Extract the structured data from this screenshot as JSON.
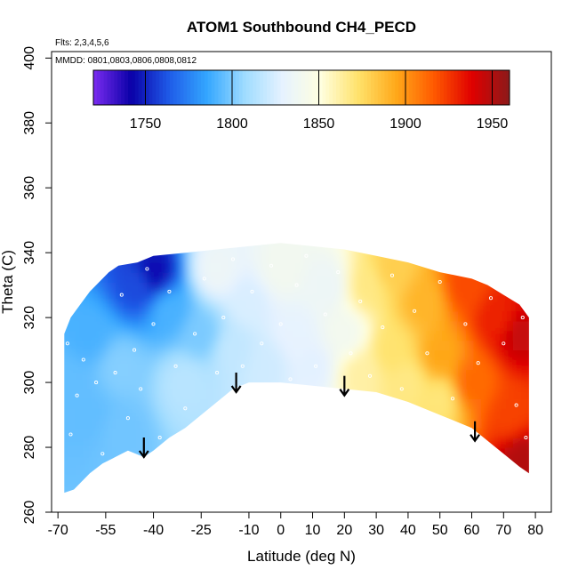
{
  "chart_data": {
    "type": "heatmap",
    "title": "ATOM1 Southbound CH4_PECD",
    "flights_label": "Flts: 2,3,4,5,6",
    "dates_label": "MMDD: 0801,0803,0806,0808,0812",
    "xlabel": "Latitude (deg N)",
    "ylabel": "Theta (C)",
    "xlim": [
      -72,
      85
    ],
    "ylim": [
      260,
      402
    ],
    "x_ticks": [
      -70,
      -55,
      -40,
      -25,
      -10,
      0,
      10,
      20,
      30,
      40,
      50,
      60,
      70,
      80
    ],
    "x_tick_labels": [
      "-70",
      "-55",
      "-40",
      "-25",
      "-10",
      "0",
      "10",
      "20",
      "30",
      "40",
      "50",
      "60",
      "70",
      "80"
    ],
    "y_ticks": [
      260,
      280,
      300,
      320,
      340,
      360,
      380,
      400
    ],
    "y_tick_labels": [
      "260",
      "280",
      "300",
      "320",
      "340",
      "360",
      "380",
      "400"
    ],
    "colorbar": {
      "min": 1720,
      "max": 1960,
      "ticks": [
        1750,
        1800,
        1850,
        1900,
        1950
      ],
      "tick_labels": [
        "1750",
        "1800",
        "1850",
        "1900",
        "1950"
      ],
      "colors": [
        "#7b2cf0",
        "#0a00a8",
        "#1f5be8",
        "#33a6ff",
        "#9fdcff",
        "#e6f2ff",
        "#ffffe0",
        "#ffe26b",
        "#ffa91a",
        "#ff5a00",
        "#e00000",
        "#8b1a1a"
      ]
    },
    "boundary_top": [
      [
        -68,
        315
      ],
      [
        -66,
        320
      ],
      [
        -63,
        324
      ],
      [
        -60,
        328
      ],
      [
        -57,
        331
      ],
      [
        -54,
        334
      ],
      [
        -51,
        336
      ],
      [
        -45,
        337
      ],
      [
        -40,
        339
      ],
      [
        -30,
        340
      ],
      [
        -20,
        341
      ],
      [
        -10,
        342
      ],
      [
        0,
        343
      ],
      [
        10,
        342
      ],
      [
        20,
        341
      ],
      [
        30,
        339
      ],
      [
        40,
        337
      ],
      [
        50,
        334
      ],
      [
        60,
        332
      ],
      [
        65,
        330
      ],
      [
        70,
        327
      ],
      [
        75,
        324
      ],
      [
        78,
        320
      ]
    ],
    "boundary_bottom": [
      [
        78,
        272
      ],
      [
        75,
        274
      ],
      [
        70,
        278
      ],
      [
        65,
        282
      ],
      [
        60,
        286
      ],
      [
        50,
        290
      ],
      [
        40,
        294
      ],
      [
        30,
        297
      ],
      [
        20,
        298
      ],
      [
        10,
        299
      ],
      [
        0,
        300
      ],
      [
        -10,
        300
      ],
      [
        -15,
        298
      ],
      [
        -20,
        294
      ],
      [
        -25,
        290
      ],
      [
        -30,
        286
      ],
      [
        -35,
        283
      ],
      [
        -40,
        279
      ],
      [
        -43,
        277
      ],
      [
        -48,
        279
      ],
      [
        -52,
        277
      ],
      [
        -56,
        275
      ],
      [
        -60,
        272
      ],
      [
        -65,
        267
      ],
      [
        -68,
        266
      ]
    ],
    "field": [
      {
        "lat": -68,
        "theta": 300,
        "ch4": 1795
      },
      {
        "lat": -60,
        "theta": 290,
        "ch4": 1795
      },
      {
        "lat": -60,
        "theta": 315,
        "ch4": 1790
      },
      {
        "lat": -50,
        "theta": 285,
        "ch4": 1798
      },
      {
        "lat": -50,
        "theta": 305,
        "ch4": 1802
      },
      {
        "lat": -45,
        "theta": 330,
        "ch4": 1760
      },
      {
        "lat": -40,
        "theta": 334,
        "ch4": 1745
      },
      {
        "lat": -35,
        "theta": 322,
        "ch4": 1790
      },
      {
        "lat": -30,
        "theta": 300,
        "ch4": 1815
      },
      {
        "lat": -25,
        "theta": 315,
        "ch4": 1800
      },
      {
        "lat": -20,
        "theta": 335,
        "ch4": 1835
      },
      {
        "lat": -15,
        "theta": 310,
        "ch4": 1818
      },
      {
        "lat": -10,
        "theta": 325,
        "ch4": 1825
      },
      {
        "lat": -5,
        "theta": 305,
        "ch4": 1822
      },
      {
        "lat": 0,
        "theta": 335,
        "ch4": 1840
      },
      {
        "lat": 5,
        "theta": 315,
        "ch4": 1830
      },
      {
        "lat": 10,
        "theta": 305,
        "ch4": 1828
      },
      {
        "lat": 15,
        "theta": 330,
        "ch4": 1835
      },
      {
        "lat": 20,
        "theta": 315,
        "ch4": 1840
      },
      {
        "lat": 25,
        "theta": 303,
        "ch4": 1862
      },
      {
        "lat": 27,
        "theta": 330,
        "ch4": 1868
      },
      {
        "lat": 35,
        "theta": 335,
        "ch4": 1880
      },
      {
        "lat": 35,
        "theta": 310,
        "ch4": 1872
      },
      {
        "lat": 40,
        "theta": 300,
        "ch4": 1868
      },
      {
        "lat": 45,
        "theta": 325,
        "ch4": 1890
      },
      {
        "lat": 50,
        "theta": 308,
        "ch4": 1895
      },
      {
        "lat": 50,
        "theta": 295,
        "ch4": 1870
      },
      {
        "lat": 58,
        "theta": 330,
        "ch4": 1920
      },
      {
        "lat": 60,
        "theta": 300,
        "ch4": 1912
      },
      {
        "lat": 68,
        "theta": 320,
        "ch4": 1930
      },
      {
        "lat": 72,
        "theta": 290,
        "ch4": 1922
      },
      {
        "lat": 75,
        "theta": 315,
        "ch4": 1945
      },
      {
        "lat": 76,
        "theta": 277,
        "ch4": 1950
      }
    ],
    "arrows": [
      {
        "lat": -43,
        "theta": 277
      },
      {
        "lat": -14,
        "theta": 297
      },
      {
        "lat": 20,
        "theta": 296
      },
      {
        "lat": 61,
        "theta": 282
      }
    ],
    "samples": [
      {
        "lat": -67,
        "theta": 312
      },
      {
        "lat": -66,
        "theta": 284
      },
      {
        "lat": -64,
        "theta": 296
      },
      {
        "lat": -62,
        "theta": 307
      },
      {
        "lat": -58,
        "theta": 300
      },
      {
        "lat": -56,
        "theta": 278
      },
      {
        "lat": -52,
        "theta": 303
      },
      {
        "lat": -50,
        "theta": 327
      },
      {
        "lat": -48,
        "theta": 289
      },
      {
        "lat": -46,
        "theta": 310
      },
      {
        "lat": -44,
        "theta": 298
      },
      {
        "lat": -42,
        "theta": 335
      },
      {
        "lat": -40,
        "theta": 318
      },
      {
        "lat": -38,
        "theta": 283
      },
      {
        "lat": -35,
        "theta": 328
      },
      {
        "lat": -33,
        "theta": 305
      },
      {
        "lat": -30,
        "theta": 292
      },
      {
        "lat": -27,
        "theta": 315
      },
      {
        "lat": -24,
        "theta": 332
      },
      {
        "lat": -20,
        "theta": 303
      },
      {
        "lat": -18,
        "theta": 320
      },
      {
        "lat": -15,
        "theta": 338
      },
      {
        "lat": -12,
        "theta": 305
      },
      {
        "lat": -9,
        "theta": 328
      },
      {
        "lat": -6,
        "theta": 312
      },
      {
        "lat": -3,
        "theta": 336
      },
      {
        "lat": 0,
        "theta": 318
      },
      {
        "lat": 3,
        "theta": 301
      },
      {
        "lat": 5,
        "theta": 330
      },
      {
        "lat": 8,
        "theta": 339
      },
      {
        "lat": 11,
        "theta": 305
      },
      {
        "lat": 14,
        "theta": 321
      },
      {
        "lat": 18,
        "theta": 334
      },
      {
        "lat": 22,
        "theta": 309
      },
      {
        "lat": 25,
        "theta": 325
      },
      {
        "lat": 28,
        "theta": 302
      },
      {
        "lat": 32,
        "theta": 317
      },
      {
        "lat": 35,
        "theta": 333
      },
      {
        "lat": 38,
        "theta": 298
      },
      {
        "lat": 42,
        "theta": 322
      },
      {
        "lat": 46,
        "theta": 309
      },
      {
        "lat": 50,
        "theta": 331
      },
      {
        "lat": 54,
        "theta": 295
      },
      {
        "lat": 58,
        "theta": 318
      },
      {
        "lat": 62,
        "theta": 306
      },
      {
        "lat": 66,
        "theta": 326
      },
      {
        "lat": 70,
        "theta": 312
      },
      {
        "lat": 74,
        "theta": 293
      },
      {
        "lat": 76,
        "theta": 320
      },
      {
        "lat": 77,
        "theta": 283
      }
    ]
  }
}
